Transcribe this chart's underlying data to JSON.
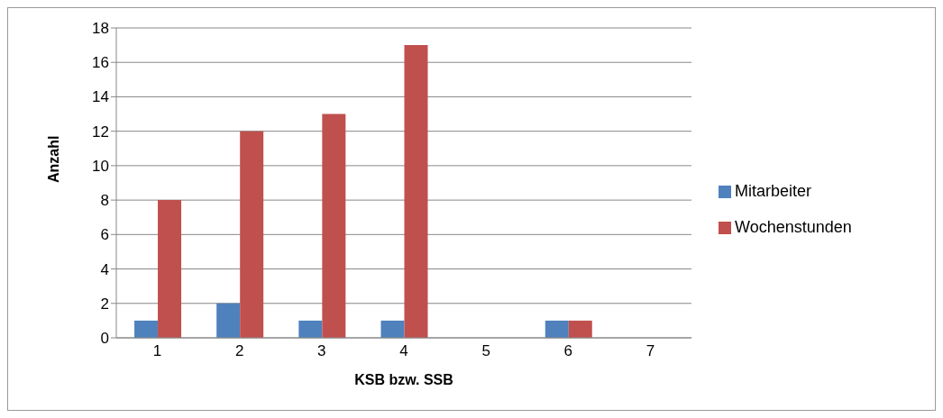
{
  "chart_data": {
    "type": "bar",
    "xlabel": "KSB bzw. SSB",
    "ylabel": "Anzahl",
    "categories": [
      "1",
      "2",
      "3",
      "4",
      "5",
      "6",
      "7"
    ],
    "series": [
      {
        "name": "Mitarbeiter",
        "color": "#4f81bd",
        "values": [
          1,
          2,
          1,
          1,
          0,
          1,
          0
        ]
      },
      {
        "name": "Wochenstunden",
        "color": "#c0504d",
        "values": [
          8,
          12,
          13,
          17,
          0,
          1,
          0
        ]
      }
    ],
    "ylim": [
      0,
      18
    ],
    "yticks": [
      0,
      2,
      4,
      6,
      8,
      10,
      12,
      14,
      16,
      18
    ],
    "grid": "y",
    "legend": "right"
  }
}
